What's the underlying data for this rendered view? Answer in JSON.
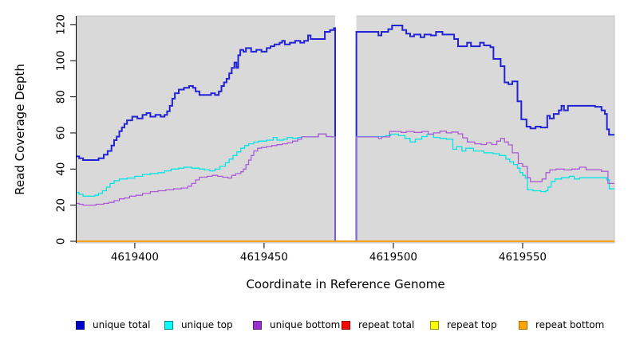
{
  "figure": {
    "background": "#ffffff"
  },
  "chart_data": {
    "type": "line",
    "step": true,
    "title": "",
    "xlabel": "Coordinate in Reference Genome",
    "ylabel": "Read Coverage Depth",
    "xlim": [
      4619377.5,
      4619585.5
    ],
    "ylim": [
      0,
      120
    ],
    "x_ticks": [
      4619400,
      4619450,
      4619500,
      4619550
    ],
    "y_ticks": [
      0,
      20,
      40,
      60,
      80,
      100,
      120
    ],
    "grid": false,
    "plot_background": "#d9d9d9",
    "plot_border": "#c3c3c3",
    "axis_color": "#000000",
    "legend_position": "bottom",
    "masked_region": {
      "x_start": 4619477.5,
      "x_end": 4619485.7,
      "fill": "#ffffff"
    },
    "series": [
      {
        "name": "unique total",
        "legend_fill": "#0000CD",
        "legend_border": "#00008B",
        "line_color": "#2222D6",
        "line_width": 2,
        "points": [
          [
            4619377.5,
            47
          ],
          [
            4619378.5,
            46
          ],
          [
            4619380,
            45
          ],
          [
            4619386,
            46
          ],
          [
            4619388,
            48
          ],
          [
            4619389.5,
            50
          ],
          [
            4619391,
            53
          ],
          [
            4619392,
            56
          ],
          [
            4619393,
            58
          ],
          [
            4619394,
            61
          ],
          [
            4619395,
            63
          ],
          [
            4619396,
            65
          ],
          [
            4619397,
            67
          ],
          [
            4619399,
            69
          ],
          [
            4619401,
            68
          ],
          [
            4619403,
            70
          ],
          [
            4619404.5,
            71
          ],
          [
            4619406,
            69
          ],
          [
            4619408,
            70
          ],
          [
            4619410,
            69
          ],
          [
            4619411.5,
            70
          ],
          [
            4619412.5,
            72
          ],
          [
            4619413.5,
            75
          ],
          [
            4619414.5,
            79
          ],
          [
            4619415.5,
            82
          ],
          [
            4619417,
            84
          ],
          [
            4619419,
            85
          ],
          [
            4619421,
            86
          ],
          [
            4619422.5,
            85
          ],
          [
            4619423.5,
            83
          ],
          [
            4619425,
            81
          ],
          [
            4619428,
            81
          ],
          [
            4619429.5,
            82
          ],
          [
            4619431,
            81
          ],
          [
            4619432.5,
            83
          ],
          [
            4619433.5,
            86
          ],
          [
            4619434.5,
            88
          ],
          [
            4619435.5,
            90
          ],
          [
            4619436.5,
            93
          ],
          [
            4619437.5,
            96
          ],
          [
            4619438.5,
            99
          ],
          [
            4619439.3,
            96
          ],
          [
            4619440,
            103
          ],
          [
            4619440.8,
            106
          ],
          [
            4619442,
            105
          ],
          [
            4619443,
            107
          ],
          [
            4619445,
            105
          ],
          [
            4619447,
            106
          ],
          [
            4619449,
            105
          ],
          [
            4619451,
            107
          ],
          [
            4619452.5,
            108
          ],
          [
            4619454,
            109
          ],
          [
            4619456,
            110
          ],
          [
            4619457,
            111
          ],
          [
            4619458,
            109
          ],
          [
            4619460,
            110
          ],
          [
            4619462,
            111
          ],
          [
            4619464,
            110
          ],
          [
            4619465.5,
            111
          ],
          [
            4619467,
            114
          ],
          [
            4619468,
            112
          ],
          [
            4619471,
            112
          ],
          [
            4619473.5,
            116
          ],
          [
            4619475.5,
            117
          ],
          [
            4619477,
            118
          ],
          [
            4619477.5,
            0
          ],
          [
            4619485.7,
            116
          ],
          [
            4619494.2,
            114
          ],
          [
            4619495.4,
            116
          ],
          [
            4619498,
            117.5
          ],
          [
            4619499.5,
            119.5
          ],
          [
            4619503.5,
            117
          ],
          [
            4619505,
            115
          ],
          [
            4619506.5,
            113.5
          ],
          [
            4619508,
            114.5
          ],
          [
            4619510.5,
            113
          ],
          [
            4619512,
            114.5
          ],
          [
            4619514.5,
            114
          ],
          [
            4619516.5,
            116
          ],
          [
            4619519,
            114.5
          ],
          [
            4619523.5,
            112
          ],
          [
            4619525,
            108
          ],
          [
            4619528.5,
            110
          ],
          [
            4619530,
            108
          ],
          [
            4619533.5,
            110
          ],
          [
            4619535,
            108.5
          ],
          [
            4619537.5,
            107.5
          ],
          [
            4619538.7,
            101
          ],
          [
            4619541.5,
            97
          ],
          [
            4619543,
            88
          ],
          [
            4619544.5,
            87
          ],
          [
            4619546,
            88.5
          ],
          [
            4619548,
            77.5
          ],
          [
            4619549.5,
            67.5
          ],
          [
            4619551.5,
            63.5
          ],
          [
            4619553,
            62.5
          ],
          [
            4619555,
            63.5
          ],
          [
            4619557,
            63
          ],
          [
            4619559.5,
            69.5
          ],
          [
            4619560.5,
            68
          ],
          [
            4619562,
            70.5
          ],
          [
            4619564,
            72.5
          ],
          [
            4619565,
            75
          ],
          [
            4619566,
            72.5
          ],
          [
            4619567.5,
            75
          ],
          [
            4619578,
            74.5
          ],
          [
            4619580.5,
            72.5
          ],
          [
            4619581.8,
            70.5
          ],
          [
            4619582.6,
            62
          ],
          [
            4619583.4,
            59
          ]
        ]
      },
      {
        "name": "unique top",
        "legend_fill": "#00FFFF",
        "legend_border": "#008B8B",
        "line_color": "#00E5E5",
        "line_width": 1.3,
        "points": [
          [
            4619377.5,
            27
          ],
          [
            4619378.5,
            26
          ],
          [
            4619380,
            25
          ],
          [
            4619384.5,
            25.5
          ],
          [
            4619386,
            26.5
          ],
          [
            4619387.5,
            28
          ],
          [
            4619389,
            30
          ],
          [
            4619390.5,
            32
          ],
          [
            4619392,
            33.5
          ],
          [
            4619394,
            34.5
          ],
          [
            4619397,
            35
          ],
          [
            4619400,
            36
          ],
          [
            4619403,
            37
          ],
          [
            4619406,
            37.5
          ],
          [
            4619409,
            38
          ],
          [
            4619411.5,
            39
          ],
          [
            4619414,
            40
          ],
          [
            4619417,
            40.5
          ],
          [
            4619419,
            41
          ],
          [
            4619422,
            40.5
          ],
          [
            4619425,
            40
          ],
          [
            4619427,
            39.5
          ],
          [
            4619429,
            39
          ],
          [
            4619431,
            40
          ],
          [
            4619433,
            41.5
          ],
          [
            4619435,
            43.5
          ],
          [
            4619436.5,
            45.5
          ],
          [
            4619438,
            47.5
          ],
          [
            4619439.5,
            49.5
          ],
          [
            4619441,
            51.5
          ],
          [
            4619442.5,
            53
          ],
          [
            4619444,
            54
          ],
          [
            4619446,
            55
          ],
          [
            4619448,
            55.5
          ],
          [
            4619451,
            56
          ],
          [
            4619453.5,
            57.5
          ],
          [
            4619455,
            56
          ],
          [
            4619457.5,
            56.5
          ],
          [
            4619459,
            57.5
          ],
          [
            4619461,
            57
          ],
          [
            4619463,
            57.5
          ],
          [
            4619464.5,
            57.8
          ],
          [
            4619471,
            59.4
          ],
          [
            4619474,
            58
          ],
          [
            4619476,
            57.8
          ],
          [
            4619477.5,
            0
          ],
          [
            4619485.7,
            58
          ],
          [
            4619497,
            58.5
          ],
          [
            4619499,
            59.3
          ],
          [
            4619502,
            58.5
          ],
          [
            4619504.5,
            57
          ],
          [
            4619506.5,
            55
          ],
          [
            4619508.5,
            56.5
          ],
          [
            4619511,
            58
          ],
          [
            4619513,
            59.3
          ],
          [
            4619515.5,
            57.5
          ],
          [
            4619518,
            57
          ],
          [
            4619520.5,
            56.5
          ],
          [
            4619523,
            51
          ],
          [
            4619524.5,
            52.5
          ],
          [
            4619526.5,
            50
          ],
          [
            4619528,
            51.5
          ],
          [
            4619531,
            50
          ],
          [
            4619535,
            49
          ],
          [
            4619538.5,
            48.5
          ],
          [
            4619541,
            47.5
          ],
          [
            4619543.5,
            45.5
          ],
          [
            4619545,
            44
          ],
          [
            4619546.5,
            42.5
          ],
          [
            4619548,
            40.5
          ],
          [
            4619549,
            38
          ],
          [
            4619550,
            36.5
          ],
          [
            4619551,
            35
          ],
          [
            4619551.8,
            28.5
          ],
          [
            4619554,
            28
          ],
          [
            4619557,
            27.5
          ],
          [
            4619559,
            28
          ],
          [
            4619559.8,
            30
          ],
          [
            4619561,
            33
          ],
          [
            4619562.5,
            34.5
          ],
          [
            4619565,
            35.2
          ],
          [
            4619568,
            36
          ],
          [
            4619570,
            34.5
          ],
          [
            4619572,
            35.2
          ],
          [
            4619582.5,
            34
          ],
          [
            4619583.5,
            29
          ]
        ]
      },
      {
        "name": "unique bottom",
        "legend_fill": "#9932CC",
        "legend_border": "#5E1C8A",
        "line_color": "#AC5BD6",
        "line_width": 1.3,
        "points": [
          [
            4619377.5,
            21
          ],
          [
            4619378.5,
            20.5
          ],
          [
            4619380,
            20
          ],
          [
            4619385,
            20.5
          ],
          [
            4619388,
            21
          ],
          [
            4619390,
            21.5
          ],
          [
            4619392,
            22.5
          ],
          [
            4619394,
            23.5
          ],
          [
            4619396,
            24
          ],
          [
            4619398,
            25
          ],
          [
            4619400.5,
            25.5
          ],
          [
            4619403,
            26.5
          ],
          [
            4619406,
            27.5
          ],
          [
            4619409,
            28
          ],
          [
            4619412,
            28.5
          ],
          [
            4619415,
            29
          ],
          [
            4619418,
            29.5
          ],
          [
            4619420.5,
            30.5
          ],
          [
            4619422,
            32
          ],
          [
            4619423.5,
            34
          ],
          [
            4619425,
            35.5
          ],
          [
            4619428,
            36
          ],
          [
            4619430,
            36.5
          ],
          [
            4619432,
            36
          ],
          [
            4619434,
            35.5
          ],
          [
            4619436,
            35
          ],
          [
            4619437.5,
            36.5
          ],
          [
            4619439,
            37.5
          ],
          [
            4619441,
            38.5
          ],
          [
            4619442,
            40
          ],
          [
            4619443,
            42.5
          ],
          [
            4619444,
            45
          ],
          [
            4619445,
            47.5
          ],
          [
            4619446,
            50
          ],
          [
            4619447.5,
            51.5
          ],
          [
            4619449,
            52
          ],
          [
            4619451,
            52.5
          ],
          [
            4619453,
            53
          ],
          [
            4619455,
            53.5
          ],
          [
            4619457,
            54
          ],
          [
            4619459,
            54.5
          ],
          [
            4619461,
            55.5
          ],
          [
            4619463,
            56.5
          ],
          [
            4619464.5,
            57.8
          ],
          [
            4619471,
            59.4
          ],
          [
            4619474,
            58
          ],
          [
            4619476,
            57.8
          ],
          [
            4619477.5,
            0
          ],
          [
            4619485.7,
            57.8
          ],
          [
            4619494.2,
            57
          ],
          [
            4619495.5,
            57.8
          ],
          [
            4619498.6,
            60.8
          ],
          [
            4619503,
            60.3
          ],
          [
            4619505,
            60.8
          ],
          [
            4619508,
            60.3
          ],
          [
            4619511,
            60.8
          ],
          [
            4619513.5,
            59.3
          ],
          [
            4619515.5,
            60
          ],
          [
            4619518,
            61
          ],
          [
            4619520.5,
            60
          ],
          [
            4619522.5,
            60.5
          ],
          [
            4619525,
            59.5
          ],
          [
            4619526.8,
            57.3
          ],
          [
            4619528.6,
            55
          ],
          [
            4619531.5,
            54
          ],
          [
            4619534,
            53.6
          ],
          [
            4619536,
            54.5
          ],
          [
            4619538,
            53.6
          ],
          [
            4619540,
            55.5
          ],
          [
            4619541.5,
            57
          ],
          [
            4619543,
            55
          ],
          [
            4619544.5,
            53.4
          ],
          [
            4619546,
            49
          ],
          [
            4619548.3,
            43
          ],
          [
            4619550,
            41.4
          ],
          [
            4619551.8,
            35.2
          ],
          [
            4619553,
            33
          ],
          [
            4619557.5,
            34.5
          ],
          [
            4619559,
            38
          ],
          [
            4619560.5,
            39.5
          ],
          [
            4619563,
            40
          ],
          [
            4619566,
            39.5
          ],
          [
            4619569,
            40
          ],
          [
            4619572,
            41
          ],
          [
            4619574.5,
            39.6
          ],
          [
            4619580.5,
            38.7
          ],
          [
            4619583,
            32
          ]
        ]
      },
      {
        "name": "repeat total",
        "legend_fill": "#FF0000",
        "legend_border": "#8B0000",
        "line_color": "#FF0000",
        "line_width": 1.3,
        "points": [
          [
            4619377.5,
            0
          ]
        ]
      },
      {
        "name": "repeat top",
        "legend_fill": "#FFFF00",
        "legend_border": "#8F8F00",
        "line_color": "#FFFF00",
        "line_width": 1.3,
        "points": [
          [
            4619377.5,
            0
          ]
        ]
      },
      {
        "name": "repeat bottom",
        "legend_fill": "#FFA500",
        "legend_border": "#B06A00",
        "line_color": "#FFA018",
        "line_width": 2,
        "points": [
          [
            4619377.5,
            0
          ]
        ]
      }
    ]
  }
}
